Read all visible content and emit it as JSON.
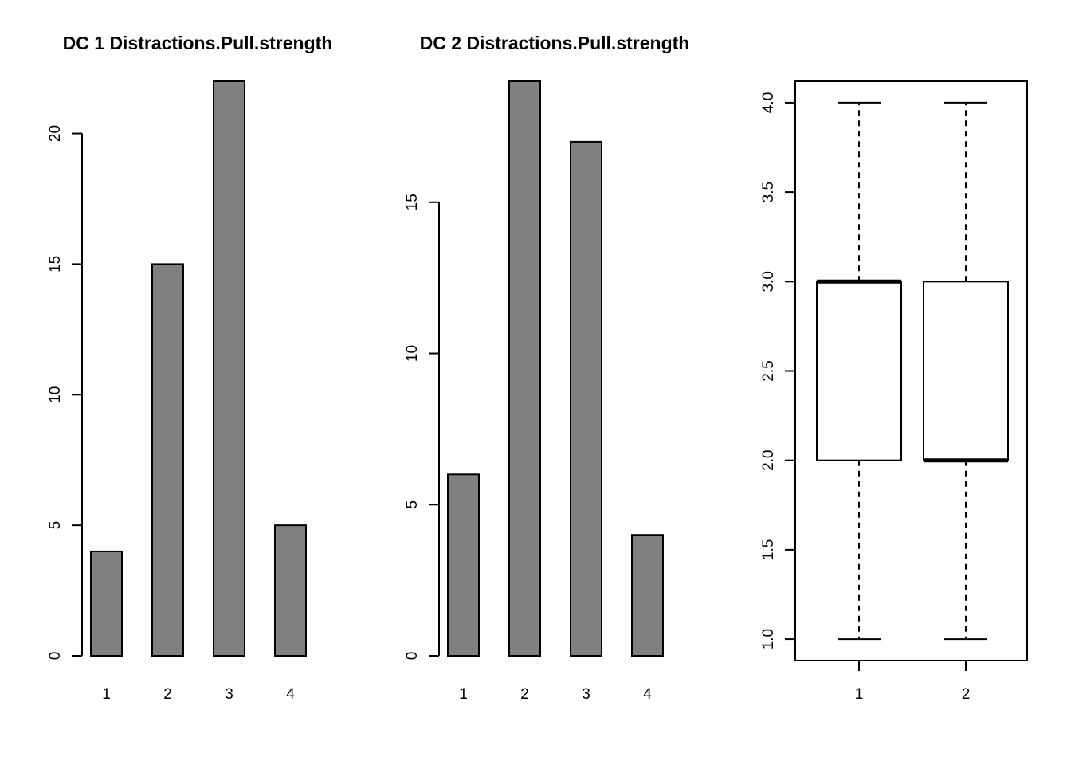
{
  "chart_data": [
    {
      "type": "bar",
      "title": "DC 1 Distractions.Pull.strength",
      "categories": [
        "1",
        "2",
        "3",
        "4"
      ],
      "values": [
        4,
        15,
        22,
        5
      ],
      "yticks": [
        0,
        5,
        10,
        15,
        20
      ],
      "ylim": [
        0,
        22
      ],
      "bar_color": "#808080"
    },
    {
      "type": "bar",
      "title": "DC 2 Distractions.Pull.strength",
      "categories": [
        "1",
        "2",
        "3",
        "4"
      ],
      "values": [
        6,
        19,
        17,
        4
      ],
      "yticks": [
        0,
        5,
        10,
        15
      ],
      "ylim": [
        0,
        19
      ],
      "bar_color": "#808080"
    },
    {
      "type": "boxplot",
      "title": "",
      "categories": [
        "1",
        "2"
      ],
      "boxes": [
        {
          "min": 1.0,
          "q1": 2.0,
          "median": 3.0,
          "q3": 3.0,
          "max": 4.0
        },
        {
          "min": 1.0,
          "q1": 2.0,
          "median": 2.0,
          "q3": 3.0,
          "max": 4.0
        }
      ],
      "yticks": [
        "1.0",
        "1.5",
        "2.0",
        "2.5",
        "3.0",
        "3.5",
        "4.0"
      ],
      "ylim": [
        0.88,
        4.12
      ]
    }
  ]
}
